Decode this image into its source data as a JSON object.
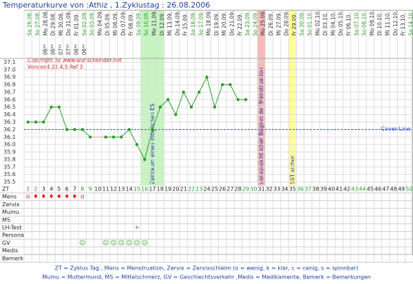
{
  "title": "Temperaturkurve von :Athiz , 1.Zyklustag : 26.08.2006",
  "dates": [
    "Sa 26.08.",
    "So 27.08.",
    "Mo 28.08.",
    "Di 29.08.",
    "Mi 30.08.",
    "Do 31.08.",
    "Fr 01.09.",
    "Sa 02.09.",
    "So 03.09.",
    "Mo 04.09.",
    "Di 05.09.",
    "Mi 06.09.",
    "Do 07.09.",
    "Fr 08.09.",
    "Sa 09.09.",
    "So 10.09.",
    "Mo 11.09.",
    "Di 12.09.",
    "Mi 13.09.",
    "Do 14.09.",
    "Fr 15.09.",
    "Sa 16.09.",
    "So 17.09.",
    "Mo 18.09.",
    "Di 19.09.",
    "Mi 20.09.",
    "Do 21.09.",
    "Fr 22.09.",
    "Sa 23.09.",
    "So 24.09.",
    "Mo 25.09.",
    "Di 26.09.",
    "Mi 27.09.",
    "Do 28.09.",
    "Fr 29.09.",
    "Sa 30.09.",
    "So 01.10.",
    "Mo 02.10.",
    "Di 03.10.",
    "Mi 04.10.",
    "Do 05.10.",
    "Fr 06.10.",
    "Sa 07.10.",
    "So 08.10.",
    "Mo 09.10.",
    "Di 10.10.",
    "Mi 11.10.",
    "Do 12.10.",
    "Fr 13.10.",
    "Sa 14.10."
  ],
  "times": [
    null,
    null,
    "06⁰⁰",
    "06⁰⁰",
    "07⁰⁰",
    "07⁰⁰",
    "06⁰⁰",
    "06⁰⁰",
    null,
    null,
    null,
    null,
    null,
    null,
    null,
    null,
    null,
    null,
    null,
    null,
    null,
    null,
    null,
    null,
    null,
    null,
    null,
    null,
    null,
    null,
    null,
    null,
    null,
    null,
    null,
    null,
    null,
    null,
    null,
    null,
    null,
    null,
    null,
    null,
    null,
    null,
    null,
    null,
    null,
    null
  ],
  "cycle_days": [
    1,
    2,
    3,
    4,
    5,
    6,
    7,
    8,
    9,
    10,
    11,
    12,
    13,
    14,
    15,
    16,
    17,
    18,
    19,
    20,
    21,
    22,
    23,
    24,
    25,
    26,
    27,
    28,
    29,
    30,
    31,
    32,
    33,
    34,
    35,
    36,
    37,
    38,
    39,
    40,
    41,
    42,
    43,
    44,
    45,
    46,
    47,
    48,
    49,
    50
  ],
  "temperatures": [
    36.3,
    36.3,
    36.3,
    36.5,
    36.5,
    36.2,
    36.2,
    36.2,
    36.1,
    null,
    36.1,
    36.1,
    36.1,
    36.2,
    36.0,
    35.8,
    36.2,
    36.5,
    36.6,
    36.4,
    36.7,
    36.5,
    36.7,
    36.9,
    36.5,
    36.8,
    36.8,
    36.6,
    36.6,
    null,
    null,
    null,
    null,
    null,
    null,
    null,
    null,
    null,
    null,
    null,
    null,
    null,
    null,
    null,
    null,
    null,
    null,
    null,
    null,
    null
  ],
  "line_color": "#2a9d2a",
  "weekend_color": "#2a9d2a",
  "ylim": [
    35.45,
    37.15
  ],
  "yticks": [
    37.1,
    {
      "value": 37.0,
      "label": "37.0"
    },
    36.9,
    36.8,
    36.7,
    36.6,
    36.5,
    36.4,
    36.3,
    36.2,
    36.1,
    {
      "value": 36.0,
      "label": "36.0"
    },
    35.9,
    35.8,
    35.7,
    35.6,
    35.5
  ],
  "cover_line": {
    "value": 36.2,
    "label": "Cover-Line"
  },
  "copyright": [
    "Copyright by www.wunschkinder.net",
    "Version4 22.4.5 Ref 3"
  ],
  "highlights": [
    {
      "days": [
        16,
        18
      ],
      "color": "#c6f5c0",
      "label": "Zeitraum eines möglichen ES"
    },
    {
      "days": [
        31,
        31
      ],
      "color": "#f5b9b9",
      "label": "voraussichtlicher Beginn der Menstruation"
    },
    {
      "days": [
        35,
        35
      ],
      "color": "#ffff99",
      "label": "SST sicher"
    }
  ],
  "row_labels": [
    "ZT",
    "Mens",
    "Zervix",
    "Mumu",
    "MS",
    "LH-Test",
    "Persona",
    "GV",
    "Medis",
    "Bemerk"
  ],
  "mens": [
    "o",
    "♦",
    "♦",
    "♦",
    "♦",
    "♦",
    "♦",
    "o",
    null,
    null,
    null,
    null,
    null,
    null,
    null,
    null,
    null,
    null,
    null,
    null,
    null,
    null,
    null,
    null,
    null,
    null,
    null,
    null,
    null,
    null,
    null,
    null,
    null,
    null,
    null,
    null,
    null,
    null,
    null,
    null,
    null,
    null,
    null,
    null,
    null,
    null,
    null,
    null,
    null,
    null
  ],
  "lh_test": [
    null,
    null,
    null,
    null,
    null,
    null,
    null,
    null,
    null,
    null,
    null,
    null,
    null,
    null,
    "+",
    null,
    null,
    null,
    null,
    null,
    null,
    null,
    null,
    null,
    null,
    null,
    null,
    null,
    null,
    null,
    null,
    null,
    null,
    null,
    null,
    null,
    null,
    null,
    null,
    null,
    null,
    null,
    null,
    null,
    null,
    null,
    null,
    null,
    null,
    null
  ],
  "gv": [
    null,
    null,
    null,
    null,
    null,
    null,
    null,
    "☺",
    null,
    null,
    "☺",
    "☺",
    "☺",
    "☺",
    "☺",
    "☺",
    null,
    null,
    null,
    null,
    null,
    null,
    null,
    null,
    null,
    null,
    null,
    null,
    null,
    null,
    null,
    null,
    null,
    null,
    null,
    null,
    null,
    null,
    null,
    null,
    null,
    null,
    null,
    null,
    null,
    null,
    null,
    null,
    null,
    null
  ],
  "legend": [
    "ZT = Zyklus Tag , Mens = Menstruation, Zervix = Zervixschleim (o = wenig, k = klar, c = cenig, s = spinnbar)",
    "Mumu = Muttermund, MS = Mittelschmerz, GV = Geschlechtsverkehr ,Medis = Medikamente, Bemerk = Bemerkungen"
  ]
}
